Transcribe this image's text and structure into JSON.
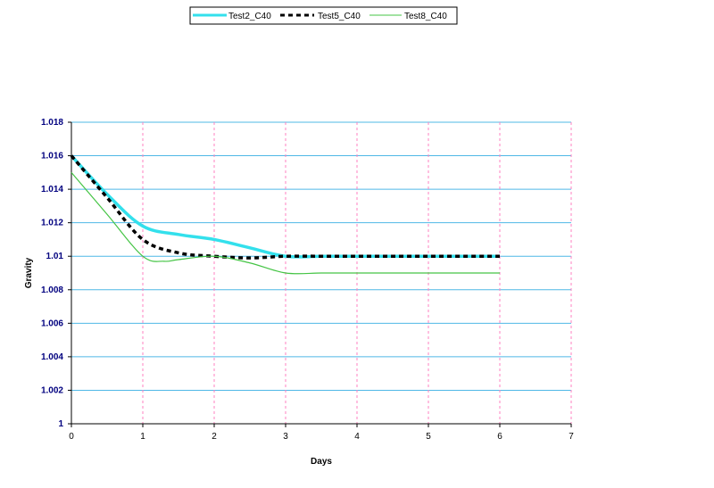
{
  "chart_data": {
    "type": "line",
    "title": "",
    "xlabel": "Days",
    "ylabel": "Gravity",
    "xlim": [
      0,
      7
    ],
    "ylim": [
      1,
      1.018
    ],
    "x_ticks": [
      "0",
      "1",
      "2",
      "3",
      "4",
      "5",
      "6",
      "7"
    ],
    "y_ticks": [
      "1",
      "1.002",
      "1.004",
      "1.006",
      "1.008",
      "1.01",
      "1.012",
      "1.014",
      "1.016",
      "1.018"
    ],
    "grid": true,
    "legend_position": "top-center",
    "series": [
      {
        "name": "Test2_C40",
        "color": "#33e0ec",
        "style": "solid-thick",
        "x": [
          0,
          0.5,
          1,
          1.5,
          2,
          2.5,
          3,
          3.5,
          4,
          5,
          6
        ],
        "y": [
          1.016,
          1.0137,
          1.0118,
          1.0113,
          1.011,
          1.0105,
          1.01,
          1.01,
          1.01,
          1.01,
          1.01
        ]
      },
      {
        "name": "Test5_C40",
        "color": "#000000",
        "style": "dashed-thick",
        "x": [
          0,
          0.5,
          1,
          1.5,
          2,
          2.5,
          3,
          3.5,
          4,
          5,
          6
        ],
        "y": [
          1.016,
          1.0135,
          1.011,
          1.0102,
          1.01,
          1.0099,
          1.01,
          1.01,
          1.01,
          1.01,
          1.01
        ]
      },
      {
        "name": "Test8_C40",
        "color": "#44c444",
        "style": "solid-thin",
        "x": [
          0,
          0.5,
          1,
          1.3,
          1.5,
          2,
          2.5,
          3,
          3.5,
          4,
          5,
          6
        ],
        "y": [
          1.015,
          1.0125,
          1.01,
          1.0097,
          1.0098,
          1.01,
          1.0096,
          1.009,
          1.009,
          1.009,
          1.009,
          1.009
        ]
      }
    ]
  }
}
